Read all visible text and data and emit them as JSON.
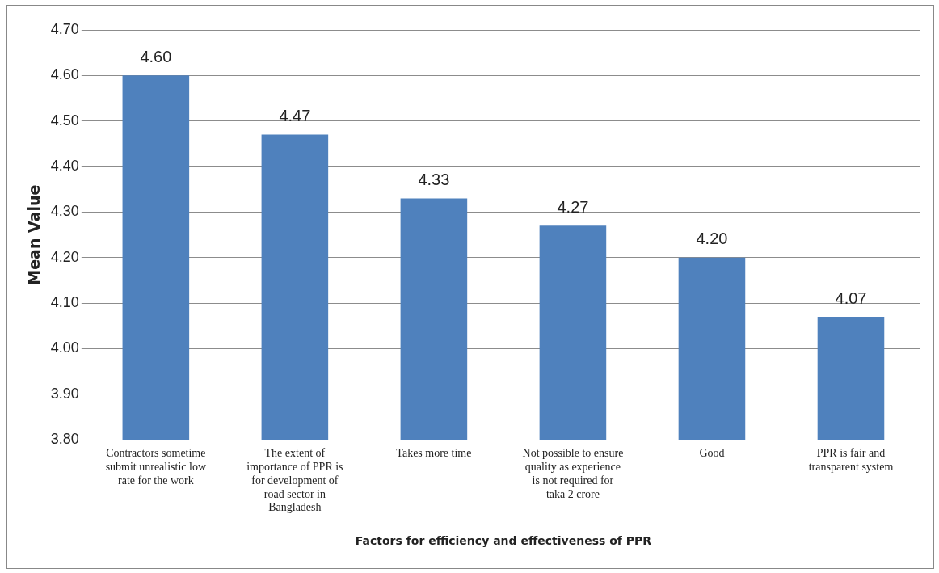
{
  "chart_data": {
    "type": "bar",
    "xlabel": "Factors for efficiency and effectiveness of PPR",
    "ylabel": "Mean Value",
    "categories": [
      "Contractors sometime submit unrealistic low rate for the work",
      "The extent of importance of PPR is for development of road sector in Bangladesh",
      "Takes more time",
      "Not possible to ensure quality as experience is not required for taka 2 crore",
      "Good",
      "PPR is fair and transparent system"
    ],
    "values": [
      4.6,
      4.47,
      4.33,
      4.27,
      4.2,
      4.07
    ],
    "value_labels": [
      "4.60",
      "4.47",
      "4.33",
      "4.27",
      "4.20",
      "4.07"
    ],
    "color": "#4f81bd",
    "ylim": [
      3.8,
      4.7
    ],
    "yticks": [
      {
        "value": 3.8,
        "label": "3.80"
      },
      {
        "value": 3.9,
        "label": "3.90"
      },
      {
        "value": 4.0,
        "label": "4.00"
      },
      {
        "value": 4.1,
        "label": "4.10"
      },
      {
        "value": 4.2,
        "label": "4.20"
      },
      {
        "value": 4.3,
        "label": "4.30"
      },
      {
        "value": 4.4,
        "label": "4.40"
      },
      {
        "value": 4.5,
        "label": "4.50"
      },
      {
        "value": 4.6,
        "label": "4.60"
      },
      {
        "value": 4.7,
        "label": "4.70"
      }
    ],
    "grid": "y",
    "legend": false
  }
}
